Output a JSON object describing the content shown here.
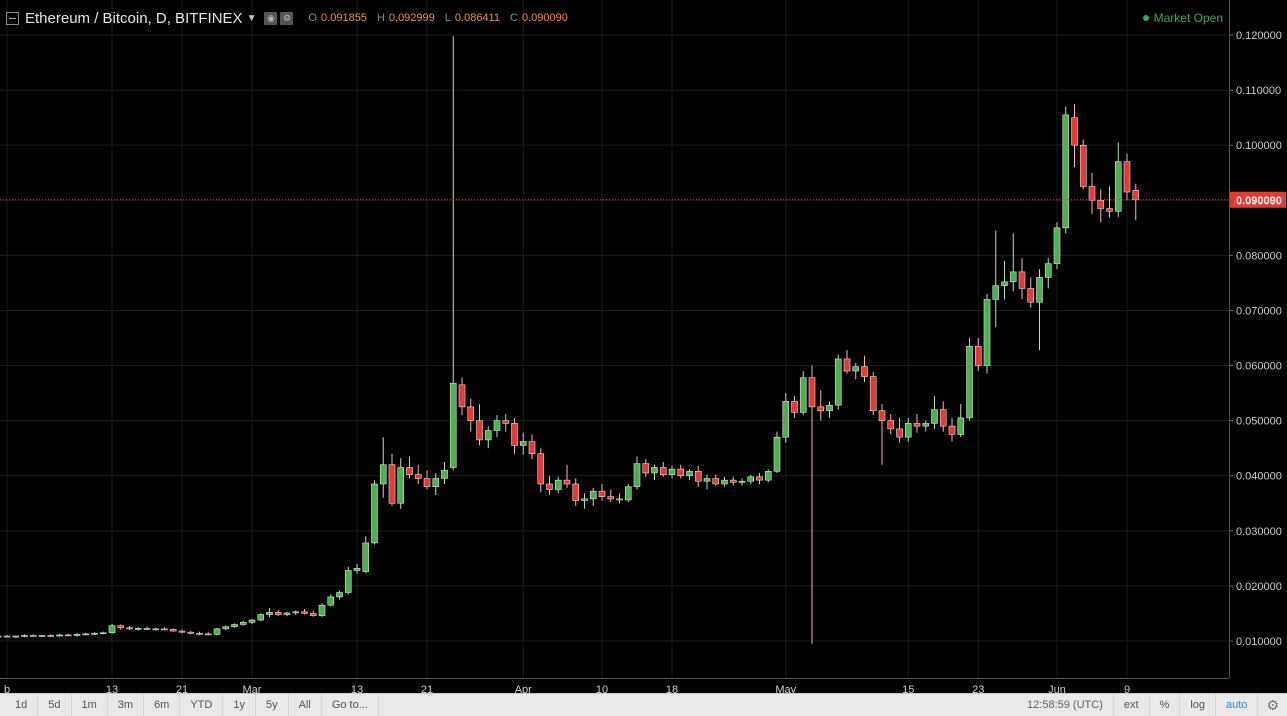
{
  "header": {
    "symbol_title": "Ethereum / Bitcoin, D, BITFINEX",
    "ohlc": [
      {
        "label": "O",
        "value": "0.091855"
      },
      {
        "label": "H",
        "value": "0.092999"
      },
      {
        "label": "L",
        "value": "0.086411"
      },
      {
        "label": "C",
        "value": "0.090090"
      }
    ],
    "market_status": "Market Open"
  },
  "toolbar": {
    "ranges": [
      "1d",
      "5d",
      "1m",
      "3m",
      "6m",
      "YTD",
      "1y",
      "5y",
      "All"
    ],
    "goto_label": "Go to...",
    "time": "12:58:59 (UTC)",
    "options": [
      "ext",
      "%",
      "log",
      "auto"
    ]
  },
  "colors": {
    "up": "#4caf50",
    "down": "#e53935",
    "background": "#000000",
    "grid": "#1c1c1c",
    "price_line": "#e53935",
    "price_label_bg": "#e53935"
  },
  "chart_data": {
    "type": "candlestick",
    "y_axis_ticks": [
      "0.010000",
      "0.020000",
      "0.030000",
      "0.040000",
      "0.050000",
      "0.060000",
      "0.070000",
      "0.080000",
      "0.090000",
      "0.100000",
      "0.110000",
      "0.120000"
    ],
    "ylim": [
      0.0,
      0.12
    ],
    "x_axis_ticks": [
      {
        "label": "b",
        "date": "2017-02-01"
      },
      {
        "label": "13",
        "date": "2017-02-13"
      },
      {
        "label": "21",
        "date": "2017-02-21"
      },
      {
        "label": "Mar",
        "date": "2017-03-01"
      },
      {
        "label": "13",
        "date": "2017-03-13"
      },
      {
        "label": "21",
        "date": "2017-03-21"
      },
      {
        "label": "Apr",
        "date": "2017-04-01"
      },
      {
        "label": "10",
        "date": "2017-04-10"
      },
      {
        "label": "18",
        "date": "2017-04-18"
      },
      {
        "label": "May",
        "date": "2017-05-01"
      },
      {
        "label": "15",
        "date": "2017-05-15"
      },
      {
        "label": "23",
        "date": "2017-05-23"
      },
      {
        "label": "Jun",
        "date": "2017-06-01"
      },
      {
        "label": "9",
        "date": "2017-06-09"
      }
    ],
    "last_price": "0.090090",
    "last_price_value": 0.09009,
    "candles": [
      {
        "d": "2017-01-31",
        "o": 0.0108,
        "h": 0.011,
        "l": 0.0106,
        "c": 0.0109
      },
      {
        "d": "2017-02-01",
        "o": 0.0109,
        "h": 0.0111,
        "l": 0.0107,
        "c": 0.0108
      },
      {
        "d": "2017-02-02",
        "o": 0.0108,
        "h": 0.011,
        "l": 0.0106,
        "c": 0.0109
      },
      {
        "d": "2017-02-03",
        "o": 0.0109,
        "h": 0.0112,
        "l": 0.0107,
        "c": 0.011
      },
      {
        "d": "2017-02-04",
        "o": 0.011,
        "h": 0.0112,
        "l": 0.0108,
        "c": 0.0109
      },
      {
        "d": "2017-02-05",
        "o": 0.0109,
        "h": 0.0111,
        "l": 0.0107,
        "c": 0.011
      },
      {
        "d": "2017-02-06",
        "o": 0.011,
        "h": 0.0112,
        "l": 0.0108,
        "c": 0.0109
      },
      {
        "d": "2017-02-07",
        "o": 0.0109,
        "h": 0.0113,
        "l": 0.0108,
        "c": 0.0111
      },
      {
        "d": "2017-02-08",
        "o": 0.0111,
        "h": 0.0113,
        "l": 0.0109,
        "c": 0.011
      },
      {
        "d": "2017-02-09",
        "o": 0.011,
        "h": 0.0114,
        "l": 0.0108,
        "c": 0.0112
      },
      {
        "d": "2017-02-10",
        "o": 0.0112,
        "h": 0.0115,
        "l": 0.011,
        "c": 0.0113
      },
      {
        "d": "2017-02-11",
        "o": 0.0113,
        "h": 0.0116,
        "l": 0.0111,
        "c": 0.0114
      },
      {
        "d": "2017-02-12",
        "o": 0.0114,
        "h": 0.0117,
        "l": 0.0112,
        "c": 0.0115
      },
      {
        "d": "2017-02-13",
        "o": 0.0115,
        "h": 0.0131,
        "l": 0.0113,
        "c": 0.0128
      },
      {
        "d": "2017-02-14",
        "o": 0.0128,
        "h": 0.013,
        "l": 0.012,
        "c": 0.0124
      },
      {
        "d": "2017-02-15",
        "o": 0.0124,
        "h": 0.0127,
        "l": 0.012,
        "c": 0.0122
      },
      {
        "d": "2017-02-16",
        "o": 0.0122,
        "h": 0.0125,
        "l": 0.0119,
        "c": 0.0123
      },
      {
        "d": "2017-02-17",
        "o": 0.0123,
        "h": 0.0126,
        "l": 0.012,
        "c": 0.0121
      },
      {
        "d": "2017-02-18",
        "o": 0.0121,
        "h": 0.0124,
        "l": 0.0119,
        "c": 0.0122
      },
      {
        "d": "2017-02-19",
        "o": 0.0122,
        "h": 0.0125,
        "l": 0.0119,
        "c": 0.0121
      },
      {
        "d": "2017-02-20",
        "o": 0.0121,
        "h": 0.0123,
        "l": 0.0117,
        "c": 0.0118
      },
      {
        "d": "2017-02-21",
        "o": 0.0118,
        "h": 0.0121,
        "l": 0.0114,
        "c": 0.0116
      },
      {
        "d": "2017-02-22",
        "o": 0.0116,
        "h": 0.0118,
        "l": 0.0112,
        "c": 0.0114
      },
      {
        "d": "2017-02-23",
        "o": 0.0114,
        "h": 0.0117,
        "l": 0.0111,
        "c": 0.0113
      },
      {
        "d": "2017-02-24",
        "o": 0.0113,
        "h": 0.0116,
        "l": 0.011,
        "c": 0.0112
      },
      {
        "d": "2017-02-25",
        "o": 0.0112,
        "h": 0.0124,
        "l": 0.011,
        "c": 0.0122
      },
      {
        "d": "2017-02-26",
        "o": 0.0122,
        "h": 0.0128,
        "l": 0.012,
        "c": 0.0126
      },
      {
        "d": "2017-02-27",
        "o": 0.0126,
        "h": 0.0132,
        "l": 0.0124,
        "c": 0.013
      },
      {
        "d": "2017-02-28",
        "o": 0.013,
        "h": 0.0137,
        "l": 0.0128,
        "c": 0.0134
      },
      {
        "d": "2017-03-01",
        "o": 0.0134,
        "h": 0.014,
        "l": 0.0131,
        "c": 0.0138
      },
      {
        "d": "2017-03-02",
        "o": 0.0138,
        "h": 0.015,
        "l": 0.0136,
        "c": 0.0148
      },
      {
        "d": "2017-03-03",
        "o": 0.0148,
        "h": 0.016,
        "l": 0.0143,
        "c": 0.0152
      },
      {
        "d": "2017-03-04",
        "o": 0.0152,
        "h": 0.0156,
        "l": 0.0145,
        "c": 0.0148
      },
      {
        "d": "2017-03-05",
        "o": 0.0148,
        "h": 0.0153,
        "l": 0.0145,
        "c": 0.0151
      },
      {
        "d": "2017-03-06",
        "o": 0.0151,
        "h": 0.0156,
        "l": 0.0147,
        "c": 0.0153
      },
      {
        "d": "2017-03-07",
        "o": 0.0153,
        "h": 0.0158,
        "l": 0.0148,
        "c": 0.015
      },
      {
        "d": "2017-03-08",
        "o": 0.015,
        "h": 0.0155,
        "l": 0.0144,
        "c": 0.0146
      },
      {
        "d": "2017-03-09",
        "o": 0.0146,
        "h": 0.0168,
        "l": 0.0144,
        "c": 0.0165
      },
      {
        "d": "2017-03-10",
        "o": 0.0165,
        "h": 0.0185,
        "l": 0.0163,
        "c": 0.018
      },
      {
        "d": "2017-03-11",
        "o": 0.018,
        "h": 0.0192,
        "l": 0.0175,
        "c": 0.0188
      },
      {
        "d": "2017-03-12",
        "o": 0.0188,
        "h": 0.0235,
        "l": 0.0185,
        "c": 0.0228
      },
      {
        "d": "2017-03-13",
        "o": 0.0228,
        "h": 0.024,
        "l": 0.0222,
        "c": 0.0232
      },
      {
        "d": "2017-03-14",
        "o": 0.0226,
        "h": 0.029,
        "l": 0.0223,
        "c": 0.0278
      },
      {
        "d": "2017-03-15",
        "o": 0.0278,
        "h": 0.0392,
        "l": 0.0275,
        "c": 0.0385
      },
      {
        "d": "2017-03-16",
        "o": 0.0385,
        "h": 0.047,
        "l": 0.036,
        "c": 0.042
      },
      {
        "d": "2017-03-17",
        "o": 0.042,
        "h": 0.044,
        "l": 0.0345,
        "c": 0.035
      },
      {
        "d": "2017-03-18",
        "o": 0.035,
        "h": 0.0432,
        "l": 0.034,
        "c": 0.0415
      },
      {
        "d": "2017-03-19",
        "o": 0.0415,
        "h": 0.0435,
        "l": 0.0395,
        "c": 0.0402
      },
      {
        "d": "2017-03-20",
        "o": 0.0402,
        "h": 0.042,
        "l": 0.0385,
        "c": 0.0395
      },
      {
        "d": "2017-03-21",
        "o": 0.0395,
        "h": 0.041,
        "l": 0.0375,
        "c": 0.038
      },
      {
        "d": "2017-03-22",
        "o": 0.038,
        "h": 0.0405,
        "l": 0.0365,
        "c": 0.0395
      },
      {
        "d": "2017-03-23",
        "o": 0.0395,
        "h": 0.0425,
        "l": 0.0385,
        "c": 0.041
      },
      {
        "d": "2017-03-24",
        "o": 0.0415,
        "h": 0.1198,
        "l": 0.041,
        "c": 0.0568
      },
      {
        "d": "2017-03-25",
        "o": 0.0565,
        "h": 0.0578,
        "l": 0.051,
        "c": 0.0525
      },
      {
        "d": "2017-03-26",
        "o": 0.0525,
        "h": 0.054,
        "l": 0.048,
        "c": 0.05
      },
      {
        "d": "2017-03-27",
        "o": 0.05,
        "h": 0.053,
        "l": 0.0455,
        "c": 0.0465
      },
      {
        "d": "2017-03-28",
        "o": 0.0465,
        "h": 0.049,
        "l": 0.045,
        "c": 0.0482
      },
      {
        "d": "2017-03-29",
        "o": 0.0482,
        "h": 0.051,
        "l": 0.047,
        "c": 0.05
      },
      {
        "d": "2017-03-30",
        "o": 0.05,
        "h": 0.0512,
        "l": 0.048,
        "c": 0.0495
      },
      {
        "d": "2017-03-31",
        "o": 0.0495,
        "h": 0.0505,
        "l": 0.044,
        "c": 0.0455
      },
      {
        "d": "2017-04-01",
        "o": 0.0455,
        "h": 0.0478,
        "l": 0.0438,
        "c": 0.0462
      },
      {
        "d": "2017-04-02",
        "o": 0.0462,
        "h": 0.0475,
        "l": 0.043,
        "c": 0.044
      },
      {
        "d": "2017-04-03",
        "o": 0.044,
        "h": 0.045,
        "l": 0.037,
        "c": 0.0385
      },
      {
        "d": "2017-04-04",
        "o": 0.0385,
        "h": 0.04,
        "l": 0.0365,
        "c": 0.0375
      },
      {
        "d": "2017-04-05",
        "o": 0.0375,
        "h": 0.0398,
        "l": 0.0368,
        "c": 0.0392
      },
      {
        "d": "2017-04-06",
        "o": 0.0392,
        "h": 0.042,
        "l": 0.0378,
        "c": 0.0385
      },
      {
        "d": "2017-04-07",
        "o": 0.0385,
        "h": 0.0395,
        "l": 0.0345,
        "c": 0.0355
      },
      {
        "d": "2017-04-08",
        "o": 0.0355,
        "h": 0.0368,
        "l": 0.034,
        "c": 0.0358
      },
      {
        "d": "2017-04-09",
        "o": 0.0358,
        "h": 0.0378,
        "l": 0.0345,
        "c": 0.0372
      },
      {
        "d": "2017-04-10",
        "o": 0.0372,
        "h": 0.0385,
        "l": 0.0355,
        "c": 0.0362
      },
      {
        "d": "2017-04-11",
        "o": 0.0362,
        "h": 0.0375,
        "l": 0.0352,
        "c": 0.0358
      },
      {
        "d": "2017-04-12",
        "o": 0.0358,
        "h": 0.0368,
        "l": 0.035,
        "c": 0.0356
      },
      {
        "d": "2017-04-13",
        "o": 0.0356,
        "h": 0.0385,
        "l": 0.0352,
        "c": 0.038
      },
      {
        "d": "2017-04-14",
        "o": 0.038,
        "h": 0.0435,
        "l": 0.0375,
        "c": 0.0422
      },
      {
        "d": "2017-04-15",
        "o": 0.0422,
        "h": 0.043,
        "l": 0.0398,
        "c": 0.0405
      },
      {
        "d": "2017-04-16",
        "o": 0.0405,
        "h": 0.042,
        "l": 0.0392,
        "c": 0.0415
      },
      {
        "d": "2017-04-17",
        "o": 0.0415,
        "h": 0.0425,
        "l": 0.0398,
        "c": 0.0402
      },
      {
        "d": "2017-04-18",
        "o": 0.0402,
        "h": 0.0418,
        "l": 0.0395,
        "c": 0.0412
      },
      {
        "d": "2017-04-19",
        "o": 0.0412,
        "h": 0.042,
        "l": 0.0395,
        "c": 0.04
      },
      {
        "d": "2017-04-20",
        "o": 0.04,
        "h": 0.0412,
        "l": 0.0392,
        "c": 0.0408
      },
      {
        "d": "2017-04-21",
        "o": 0.0408,
        "h": 0.0418,
        "l": 0.038,
        "c": 0.039
      },
      {
        "d": "2017-04-22",
        "o": 0.039,
        "h": 0.0402,
        "l": 0.0375,
        "c": 0.0395
      },
      {
        "d": "2017-04-23",
        "o": 0.0395,
        "h": 0.0402,
        "l": 0.0382,
        "c": 0.0385
      },
      {
        "d": "2017-04-24",
        "o": 0.0385,
        "h": 0.0398,
        "l": 0.038,
        "c": 0.0392
      },
      {
        "d": "2017-04-25",
        "o": 0.0392,
        "h": 0.0398,
        "l": 0.0382,
        "c": 0.0388
      },
      {
        "d": "2017-04-26",
        "o": 0.0388,
        "h": 0.0395,
        "l": 0.0382,
        "c": 0.039
      },
      {
        "d": "2017-04-27",
        "o": 0.039,
        "h": 0.0402,
        "l": 0.0385,
        "c": 0.0398
      },
      {
        "d": "2017-04-28",
        "o": 0.0398,
        "h": 0.0405,
        "l": 0.0385,
        "c": 0.0392
      },
      {
        "d": "2017-04-29",
        "o": 0.0392,
        "h": 0.0412,
        "l": 0.0388,
        "c": 0.0408
      },
      {
        "d": "2017-04-30",
        "o": 0.0408,
        "h": 0.048,
        "l": 0.0405,
        "c": 0.047
      },
      {
        "d": "2017-05-01",
        "o": 0.047,
        "h": 0.055,
        "l": 0.046,
        "c": 0.0535
      },
      {
        "d": "2017-05-02",
        "o": 0.0535,
        "h": 0.0545,
        "l": 0.0505,
        "c": 0.0515
      },
      {
        "d": "2017-05-03",
        "o": 0.0515,
        "h": 0.059,
        "l": 0.051,
        "c": 0.0578
      },
      {
        "d": "2017-05-04",
        "o": 0.0578,
        "h": 0.06,
        "l": 0.0095,
        "c": 0.0525
      },
      {
        "d": "2017-05-05",
        "o": 0.0525,
        "h": 0.0555,
        "l": 0.05,
        "c": 0.0518
      },
      {
        "d": "2017-05-06",
        "o": 0.0518,
        "h": 0.0535,
        "l": 0.0505,
        "c": 0.0528
      },
      {
        "d": "2017-05-07",
        "o": 0.0528,
        "h": 0.062,
        "l": 0.052,
        "c": 0.0612
      },
      {
        "d": "2017-05-08",
        "o": 0.0612,
        "h": 0.0628,
        "l": 0.0585,
        "c": 0.059
      },
      {
        "d": "2017-05-09",
        "o": 0.059,
        "h": 0.0605,
        "l": 0.0575,
        "c": 0.0598
      },
      {
        "d": "2017-05-10",
        "o": 0.0598,
        "h": 0.0618,
        "l": 0.057,
        "c": 0.058
      },
      {
        "d": "2017-05-11",
        "o": 0.058,
        "h": 0.0588,
        "l": 0.051,
        "c": 0.0518
      },
      {
        "d": "2017-05-12",
        "o": 0.0518,
        "h": 0.053,
        "l": 0.042,
        "c": 0.05
      },
      {
        "d": "2017-05-13",
        "o": 0.05,
        "h": 0.0512,
        "l": 0.0475,
        "c": 0.0485
      },
      {
        "d": "2017-05-14",
        "o": 0.0485,
        "h": 0.0505,
        "l": 0.046,
        "c": 0.047
      },
      {
        "d": "2017-05-15",
        "o": 0.047,
        "h": 0.0505,
        "l": 0.0462,
        "c": 0.0495
      },
      {
        "d": "2017-05-16",
        "o": 0.0495,
        "h": 0.0512,
        "l": 0.0478,
        "c": 0.049
      },
      {
        "d": "2017-05-17",
        "o": 0.049,
        "h": 0.05,
        "l": 0.048,
        "c": 0.0495
      },
      {
        "d": "2017-05-18",
        "o": 0.0495,
        "h": 0.0545,
        "l": 0.0485,
        "c": 0.052
      },
      {
        "d": "2017-05-19",
        "o": 0.052,
        "h": 0.0535,
        "l": 0.048,
        "c": 0.049
      },
      {
        "d": "2017-05-20",
        "o": 0.049,
        "h": 0.0505,
        "l": 0.0462,
        "c": 0.0475
      },
      {
        "d": "2017-05-21",
        "o": 0.0475,
        "h": 0.053,
        "l": 0.047,
        "c": 0.0505
      },
      {
        "d": "2017-05-22",
        "o": 0.0505,
        "h": 0.065,
        "l": 0.05,
        "c": 0.0635
      },
      {
        "d": "2017-05-23",
        "o": 0.0635,
        "h": 0.065,
        "l": 0.059,
        "c": 0.06
      },
      {
        "d": "2017-05-24",
        "o": 0.06,
        "h": 0.073,
        "l": 0.0585,
        "c": 0.072
      },
      {
        "d": "2017-05-25",
        "o": 0.072,
        "h": 0.0845,
        "l": 0.067,
        "c": 0.0745
      },
      {
        "d": "2017-05-26",
        "o": 0.0745,
        "h": 0.079,
        "l": 0.072,
        "c": 0.0752
      },
      {
        "d": "2017-05-27",
        "o": 0.0752,
        "h": 0.084,
        "l": 0.0735,
        "c": 0.077
      },
      {
        "d": "2017-05-28",
        "o": 0.077,
        "h": 0.0795,
        "l": 0.072,
        "c": 0.074
      },
      {
        "d": "2017-05-29",
        "o": 0.074,
        "h": 0.076,
        "l": 0.0705,
        "c": 0.0715
      },
      {
        "d": "2017-05-30",
        "o": 0.0715,
        "h": 0.0775,
        "l": 0.0628,
        "c": 0.076
      },
      {
        "d": "2017-05-31",
        "o": 0.076,
        "h": 0.0795,
        "l": 0.074,
        "c": 0.0785
      },
      {
        "d": "2017-06-01",
        "o": 0.0785,
        "h": 0.086,
        "l": 0.0775,
        "c": 0.085
      },
      {
        "d": "2017-06-02",
        "o": 0.085,
        "h": 0.107,
        "l": 0.084,
        "c": 0.1055
      },
      {
        "d": "2017-06-03",
        "o": 0.105,
        "h": 0.1075,
        "l": 0.096,
        "c": 0.1
      },
      {
        "d": "2017-06-04",
        "o": 0.1,
        "h": 0.101,
        "l": 0.092,
        "c": 0.0925
      },
      {
        "d": "2017-06-05",
        "o": 0.0925,
        "h": 0.095,
        "l": 0.0875,
        "c": 0.09
      },
      {
        "d": "2017-06-06",
        "o": 0.09,
        "h": 0.092,
        "l": 0.086,
        "c": 0.0885
      },
      {
        "d": "2017-06-07",
        "o": 0.0885,
        "h": 0.0925,
        "l": 0.0868,
        "c": 0.088
      },
      {
        "d": "2017-06-08",
        "o": 0.088,
        "h": 0.1005,
        "l": 0.087,
        "c": 0.097
      },
      {
        "d": "2017-06-09",
        "o": 0.097,
        "h": 0.0985,
        "l": 0.09,
        "c": 0.0915
      },
      {
        "d": "2017-06-10",
        "o": 0.0918,
        "h": 0.093,
        "l": 0.0864,
        "c": 0.0901
      }
    ]
  }
}
